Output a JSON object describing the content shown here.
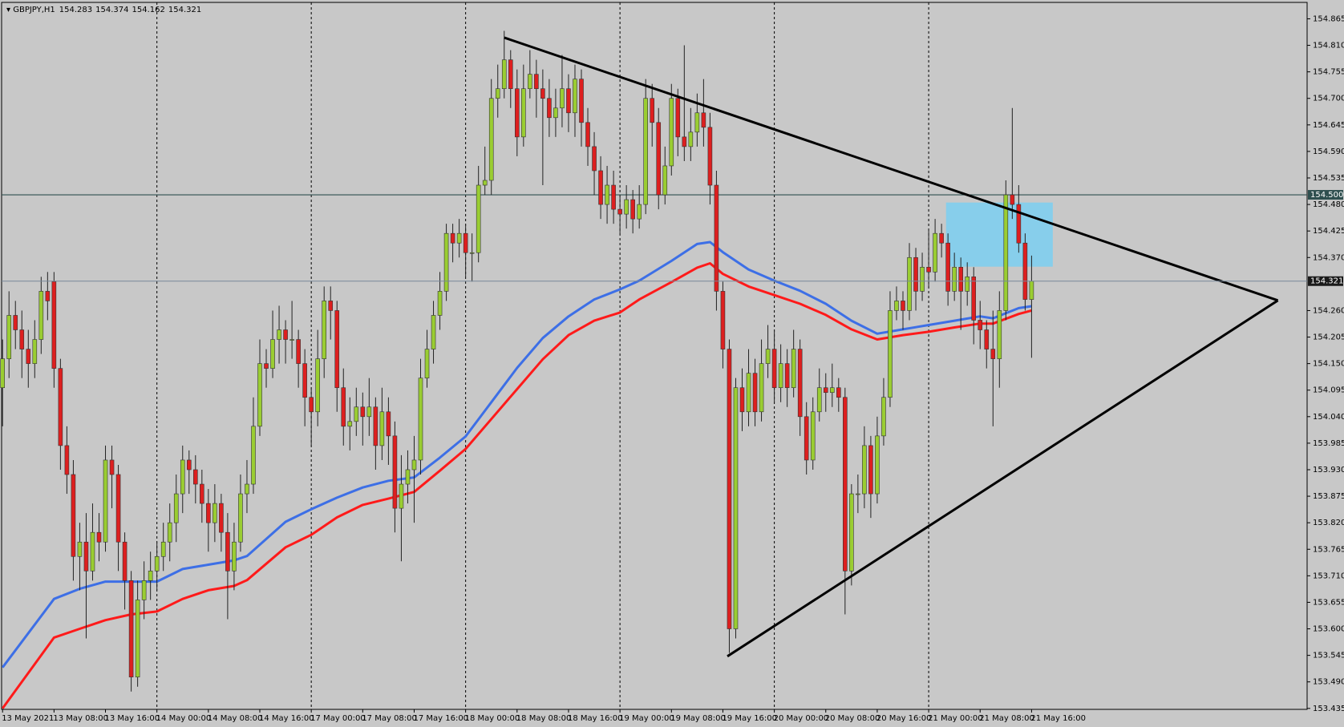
{
  "chart_data": {
    "type": "candlestick",
    "title": "GBPJPY,H1",
    "categories": [
      "13 May 2021",
      null,
      null,
      null,
      null,
      null,
      null,
      null,
      "13 May 08:00",
      null,
      null,
      null,
      null,
      null,
      null,
      null,
      "13 May 16:00",
      null,
      null,
      null,
      null,
      null,
      null,
      null,
      "14 May 00:00",
      null,
      null,
      null,
      null,
      null,
      null,
      null,
      "14 May 08:00",
      null,
      null,
      null,
      null,
      null,
      null,
      null,
      "14 May 16:00",
      null,
      null,
      null,
      null,
      null,
      null,
      null,
      "17 May 00:00",
      null,
      null,
      null,
      null,
      null,
      null,
      null,
      "17 May 08:00",
      null,
      null,
      null,
      null,
      null,
      null,
      null,
      "17 May 16:00",
      null,
      null,
      null,
      null,
      null,
      null,
      null,
      "18 May 00:00",
      null,
      null,
      null,
      null,
      null,
      null,
      null,
      "18 May 08:00",
      null,
      null,
      null,
      null,
      null,
      null,
      null,
      "18 May 16:00",
      null,
      null,
      null,
      null,
      null,
      null,
      null,
      "19 May 00:00",
      null,
      null,
      null,
      null,
      null,
      null,
      null,
      "19 May 08:00",
      null,
      null,
      null,
      null,
      null,
      null,
      null,
      "19 May 16:00",
      null,
      null,
      null,
      null,
      null,
      null,
      null,
      "20 May 00:00",
      null,
      null,
      null,
      null,
      null,
      null,
      null,
      "20 May 08:00",
      null,
      null,
      null,
      null,
      null,
      null,
      null,
      "20 May 16:00",
      null,
      null,
      null,
      null,
      null,
      null,
      null,
      "21 May 00:00",
      null,
      null,
      null,
      null,
      null,
      null,
      null,
      "21 May 08:00",
      null,
      null,
      null,
      null,
      null,
      null,
      null,
      "21 May 16:00"
    ],
    "ohlc": [
      [
        154.1,
        154.2,
        154.02,
        154.16
      ],
      [
        154.16,
        154.3,
        154.12,
        154.25
      ],
      [
        154.25,
        154.28,
        154.18,
        154.22
      ],
      [
        154.22,
        154.26,
        154.12,
        154.18
      ],
      [
        154.18,
        154.22,
        154.1,
        154.15
      ],
      [
        154.15,
        154.24,
        154.12,
        154.2
      ],
      [
        154.2,
        154.33,
        154.17,
        154.3
      ],
      [
        154.3,
        154.34,
        154.24,
        154.28
      ],
      [
        154.32,
        154.34,
        154.1,
        154.14
      ],
      [
        154.14,
        154.16,
        153.93,
        153.98
      ],
      [
        153.98,
        154.02,
        153.88,
        153.92
      ],
      [
        153.92,
        153.95,
        153.7,
        153.75
      ],
      [
        153.75,
        153.82,
        153.68,
        153.78
      ],
      [
        153.78,
        153.84,
        153.58,
        153.72
      ],
      [
        153.72,
        153.86,
        153.7,
        153.8
      ],
      [
        153.8,
        153.84,
        153.74,
        153.78
      ],
      [
        153.78,
        153.98,
        153.76,
        153.95
      ],
      [
        153.95,
        153.98,
        153.85,
        153.92
      ],
      [
        153.92,
        153.94,
        153.72,
        153.78
      ],
      [
        153.78,
        153.8,
        153.64,
        153.7
      ],
      [
        153.7,
        153.72,
        153.47,
        153.5
      ],
      [
        153.5,
        153.7,
        153.48,
        153.66
      ],
      [
        153.66,
        153.74,
        153.62,
        153.7
      ],
      [
        153.7,
        153.76,
        153.66,
        153.72
      ],
      [
        153.72,
        153.78,
        153.68,
        153.75
      ],
      [
        153.75,
        153.82,
        153.72,
        153.78
      ],
      [
        153.78,
        153.86,
        153.74,
        153.82
      ],
      [
        153.82,
        153.92,
        153.78,
        153.88
      ],
      [
        153.88,
        153.98,
        153.84,
        153.95
      ],
      [
        153.95,
        153.97,
        153.88,
        153.93
      ],
      [
        153.93,
        153.96,
        153.86,
        153.9
      ],
      [
        153.9,
        153.93,
        153.82,
        153.86
      ],
      [
        153.86,
        153.89,
        153.76,
        153.82
      ],
      [
        153.82,
        153.9,
        153.78,
        153.86
      ],
      [
        153.86,
        153.88,
        153.76,
        153.8
      ],
      [
        153.8,
        153.84,
        153.62,
        153.72
      ],
      [
        153.72,
        153.82,
        153.68,
        153.78
      ],
      [
        153.78,
        153.92,
        153.76,
        153.88
      ],
      [
        153.88,
        153.95,
        153.84,
        153.9
      ],
      [
        153.9,
        154.08,
        153.88,
        154.02
      ],
      [
        154.02,
        154.2,
        154.0,
        154.15
      ],
      [
        154.15,
        154.18,
        154.1,
        154.14
      ],
      [
        154.14,
        154.26,
        154.12,
        154.2
      ],
      [
        154.2,
        154.27,
        154.15,
        154.22
      ],
      [
        154.22,
        154.24,
        154.15,
        154.2
      ],
      [
        154.2,
        154.28,
        154.16,
        154.2
      ],
      [
        154.2,
        154.22,
        154.1,
        154.15
      ],
      [
        154.15,
        154.18,
        154.02,
        154.08
      ],
      [
        154.08,
        154.1,
        153.98,
        154.05
      ],
      [
        154.05,
        154.22,
        154.02,
        154.16
      ],
      [
        154.16,
        154.31,
        154.12,
        154.28
      ],
      [
        154.28,
        154.31,
        154.2,
        154.26
      ],
      [
        154.26,
        154.28,
        154.05,
        154.1
      ],
      [
        154.1,
        154.14,
        153.98,
        154.02
      ],
      [
        154.02,
        154.08,
        153.97,
        154.03
      ],
      [
        154.03,
        154.1,
        154.0,
        154.06
      ],
      [
        154.06,
        154.09,
        153.98,
        154.04
      ],
      [
        154.04,
        154.12,
        154.0,
        154.06
      ],
      [
        154.06,
        154.08,
        153.93,
        153.98
      ],
      [
        153.98,
        154.1,
        153.95,
        154.05
      ],
      [
        154.05,
        154.08,
        153.94,
        154.0
      ],
      [
        154.0,
        154.03,
        153.8,
        153.85
      ],
      [
        153.85,
        153.96,
        153.74,
        153.9
      ],
      [
        153.9,
        153.97,
        153.86,
        153.93
      ],
      [
        153.93,
        154.0,
        153.82,
        153.95
      ],
      [
        153.95,
        154.16,
        153.92,
        154.12
      ],
      [
        154.12,
        154.22,
        154.1,
        154.18
      ],
      [
        154.18,
        154.28,
        154.15,
        154.25
      ],
      [
        154.25,
        154.34,
        154.22,
        154.3
      ],
      [
        154.3,
        154.44,
        154.28,
        154.42
      ],
      [
        154.42,
        154.44,
        154.36,
        154.4
      ],
      [
        154.4,
        154.45,
        154.37,
        154.42
      ],
      [
        154.42,
        154.44,
        154.33,
        154.38
      ],
      [
        154.38,
        154.42,
        154.32,
        154.38
      ],
      [
        154.38,
        154.56,
        154.36,
        154.52
      ],
      [
        154.52,
        154.6,
        154.5,
        154.53
      ],
      [
        154.53,
        154.74,
        154.5,
        154.7
      ],
      [
        154.7,
        154.77,
        154.66,
        154.72
      ],
      [
        154.72,
        154.84,
        154.7,
        154.78
      ],
      [
        154.78,
        154.8,
        154.68,
        154.72
      ],
      [
        154.72,
        154.76,
        154.58,
        154.62
      ],
      [
        154.62,
        154.77,
        154.6,
        154.72
      ],
      [
        154.72,
        154.8,
        154.7,
        154.75
      ],
      [
        154.75,
        154.78,
        154.66,
        154.72
      ],
      [
        154.72,
        154.76,
        154.52,
        154.7
      ],
      [
        154.7,
        154.74,
        154.62,
        154.66
      ],
      [
        154.66,
        154.72,
        154.62,
        154.68
      ],
      [
        154.68,
        154.79,
        154.64,
        154.72
      ],
      [
        154.72,
        154.75,
        154.63,
        154.67
      ],
      [
        154.67,
        154.77,
        154.62,
        154.74
      ],
      [
        154.74,
        154.76,
        154.6,
        154.65
      ],
      [
        154.65,
        154.68,
        154.56,
        154.6
      ],
      [
        154.6,
        154.63,
        154.5,
        154.55
      ],
      [
        154.55,
        154.58,
        154.45,
        154.48
      ],
      [
        154.48,
        154.56,
        154.44,
        154.52
      ],
      [
        154.52,
        154.55,
        154.44,
        154.47
      ],
      [
        154.47,
        154.5,
        154.42,
        154.46
      ],
      [
        154.46,
        154.52,
        154.43,
        154.49
      ],
      [
        154.49,
        154.51,
        154.42,
        154.45
      ],
      [
        154.45,
        154.52,
        154.43,
        154.48
      ],
      [
        154.48,
        154.74,
        154.46,
        154.7
      ],
      [
        154.7,
        154.73,
        154.6,
        154.65
      ],
      [
        154.65,
        154.68,
        154.47,
        154.5
      ],
      [
        154.5,
        154.6,
        154.48,
        154.56
      ],
      [
        154.56,
        154.73,
        154.54,
        154.7
      ],
      [
        154.7,
        154.72,
        154.58,
        154.62
      ],
      [
        154.62,
        154.81,
        154.57,
        154.6
      ],
      [
        154.6,
        154.68,
        154.57,
        154.63
      ],
      [
        154.63,
        154.71,
        154.6,
        154.67
      ],
      [
        154.67,
        154.74,
        154.6,
        154.64
      ],
      [
        154.64,
        154.67,
        154.48,
        154.52
      ],
      [
        154.52,
        154.55,
        154.26,
        154.3
      ],
      [
        154.3,
        154.32,
        154.14,
        154.18
      ],
      [
        154.18,
        154.2,
        153.55,
        153.6
      ],
      [
        153.6,
        154.12,
        153.58,
        154.1
      ],
      [
        154.1,
        154.14,
        154.01,
        154.05
      ],
      [
        154.05,
        154.18,
        154.02,
        154.13
      ],
      [
        154.13,
        154.16,
        154.02,
        154.05
      ],
      [
        154.05,
        154.2,
        154.03,
        154.15
      ],
      [
        154.15,
        154.23,
        154.12,
        154.18
      ],
      [
        154.18,
        154.22,
        154.07,
        154.1
      ],
      [
        154.1,
        154.19,
        154.07,
        154.15
      ],
      [
        154.15,
        154.18,
        154.06,
        154.1
      ],
      [
        154.1,
        154.22,
        154.08,
        154.18
      ],
      [
        154.18,
        154.2,
        154.0,
        154.04
      ],
      [
        154.04,
        154.07,
        153.92,
        153.95
      ],
      [
        153.95,
        154.08,
        153.93,
        154.05
      ],
      [
        154.05,
        154.14,
        154.03,
        154.1
      ],
      [
        154.1,
        154.13,
        154.05,
        154.09
      ],
      [
        154.09,
        154.15,
        154.06,
        154.1
      ],
      [
        154.1,
        154.12,
        154.05,
        154.08
      ],
      [
        154.08,
        154.1,
        153.63,
        153.72
      ],
      [
        153.72,
        153.9,
        153.69,
        153.88
      ],
      [
        153.88,
        153.92,
        153.84,
        153.88
      ],
      [
        153.88,
        154.02,
        153.85,
        153.98
      ],
      [
        153.98,
        154.0,
        153.83,
        153.88
      ],
      [
        153.88,
        154.04,
        153.86,
        154.0
      ],
      [
        154.0,
        154.12,
        153.98,
        154.08
      ],
      [
        154.08,
        154.3,
        154.06,
        154.26
      ],
      [
        154.26,
        154.31,
        154.24,
        154.28
      ],
      [
        154.28,
        154.3,
        154.22,
        154.26
      ],
      [
        154.26,
        154.4,
        154.24,
        154.37
      ],
      [
        154.37,
        154.39,
        154.26,
        154.3
      ],
      [
        154.3,
        154.38,
        154.28,
        154.35
      ],
      [
        154.35,
        154.43,
        154.31,
        154.34
      ],
      [
        154.34,
        154.45,
        154.32,
        154.42
      ],
      [
        154.42,
        154.44,
        154.37,
        154.4
      ],
      [
        154.4,
        154.42,
        154.27,
        154.3
      ],
      [
        154.3,
        154.38,
        154.28,
        154.35
      ],
      [
        154.35,
        154.37,
        154.22,
        154.3
      ],
      [
        154.3,
        154.36,
        154.27,
        154.33
      ],
      [
        154.33,
        154.35,
        154.19,
        154.24
      ],
      [
        154.24,
        154.28,
        154.18,
        154.22
      ],
      [
        154.22,
        154.24,
        154.14,
        154.18
      ],
      [
        154.18,
        154.26,
        154.02,
        154.16
      ],
      [
        154.16,
        154.3,
        154.1,
        154.26
      ],
      [
        154.26,
        154.53,
        154.24,
        154.5
      ],
      [
        154.5,
        154.68,
        154.45,
        154.48
      ],
      [
        154.48,
        154.52,
        154.38,
        154.4
      ],
      [
        154.4,
        154.42,
        154.26,
        154.283
      ],
      [
        154.283,
        154.374,
        154.162,
        154.321
      ]
    ],
    "up_color": "#9acd32",
    "down_color": "#dd1f1f",
    "series": [
      {
        "color": "#3d6fe6",
        "x": [
          0,
          8,
          12,
          16,
          20,
          24,
          28,
          32,
          36,
          38,
          44,
          48,
          52,
          56,
          60,
          64,
          68,
          72,
          76,
          80,
          84,
          88,
          92,
          96,
          99,
          104,
          108,
          110,
          112,
          116,
          120,
          124,
          128,
          132,
          136,
          140,
          144,
          148,
          152,
          154,
          158,
          160
        ],
        "values": [
          153.52,
          153.662,
          153.683,
          153.698,
          153.698,
          153.698,
          153.724,
          153.733,
          153.742,
          153.751,
          153.822,
          153.848,
          153.872,
          153.893,
          153.907,
          153.914,
          153.955,
          153.999,
          154.07,
          154.141,
          154.203,
          154.248,
          154.283,
          154.304,
          154.322,
          154.363,
          154.398,
          154.402,
          154.381,
          154.345,
          154.322,
          154.301,
          154.274,
          154.239,
          154.212,
          154.221,
          154.23,
          154.239,
          154.248,
          154.244,
          154.265,
          154.269
        ]
      },
      {
        "color": "#ff1a1a",
        "x": [
          0,
          8,
          12,
          16,
          20,
          24,
          28,
          32,
          36,
          38,
          44,
          48,
          52,
          56,
          60,
          64,
          68,
          72,
          76,
          80,
          84,
          88,
          92,
          96,
          99,
          104,
          108,
          110,
          112,
          116,
          120,
          124,
          128,
          132,
          136,
          140,
          144,
          148,
          152,
          154,
          158,
          160
        ],
        "values": [
          153.435,
          153.582,
          153.6,
          153.618,
          153.63,
          153.636,
          153.662,
          153.68,
          153.689,
          153.701,
          153.769,
          153.795,
          153.831,
          153.857,
          153.87,
          153.884,
          153.928,
          153.973,
          154.035,
          154.097,
          154.159,
          154.209,
          154.239,
          154.256,
          154.283,
          154.319,
          154.349,
          154.358,
          154.336,
          154.31,
          154.292,
          154.274,
          154.251,
          154.221,
          154.2,
          154.209,
          154.216,
          154.225,
          154.233,
          154.233,
          154.253,
          154.26
        ]
      }
    ],
    "trendlines": [
      {
        "x": [
          78,
          198.3
        ],
        "values": [
          154.826,
          154.281
        ]
      },
      {
        "x": [
          112.7,
          198.3
        ],
        "values": [
          153.543,
          154.281
        ]
      }
    ],
    "zone": {
      "x": [
        146.7,
        163.3
      ],
      "values": [
        154.484,
        154.351
      ],
      "color": "#87ceeb"
    },
    "hlines": [
      {
        "value": 154.5,
        "label": "154.500"
      }
    ],
    "ylim": [
      153.433,
      154.899
    ],
    "yticks": [
      154.865,
      {
        "value": 154.81,
        "label": "154.810"
      },
      154.755,
      {
        "value": 154.7,
        "label": "154.700"
      },
      154.645,
      {
        "value": 154.59,
        "label": "154.590"
      },
      154.535,
      {
        "value": 154.48,
        "label": "154.480"
      },
      154.425,
      {
        "value": 154.37,
        "label": "154.370"
      },
      {
        "value": 154.26,
        "label": "154.260"
      },
      154.205,
      {
        "value": 154.15,
        "label": "154.150"
      },
      154.095,
      {
        "value": 154.04,
        "label": "154.040"
      },
      153.985,
      {
        "value": 153.93,
        "label": "153.930"
      },
      153.875,
      {
        "value": 153.82,
        "label": "153.820"
      },
      153.765,
      {
        "value": 153.71,
        "label": "153.710"
      },
      153.655,
      {
        "value": 153.6,
        "label": "153.600"
      },
      153.545,
      {
        "value": 153.49,
        "label": "153.490"
      },
      153.435
    ],
    "grid": true
  }
}
